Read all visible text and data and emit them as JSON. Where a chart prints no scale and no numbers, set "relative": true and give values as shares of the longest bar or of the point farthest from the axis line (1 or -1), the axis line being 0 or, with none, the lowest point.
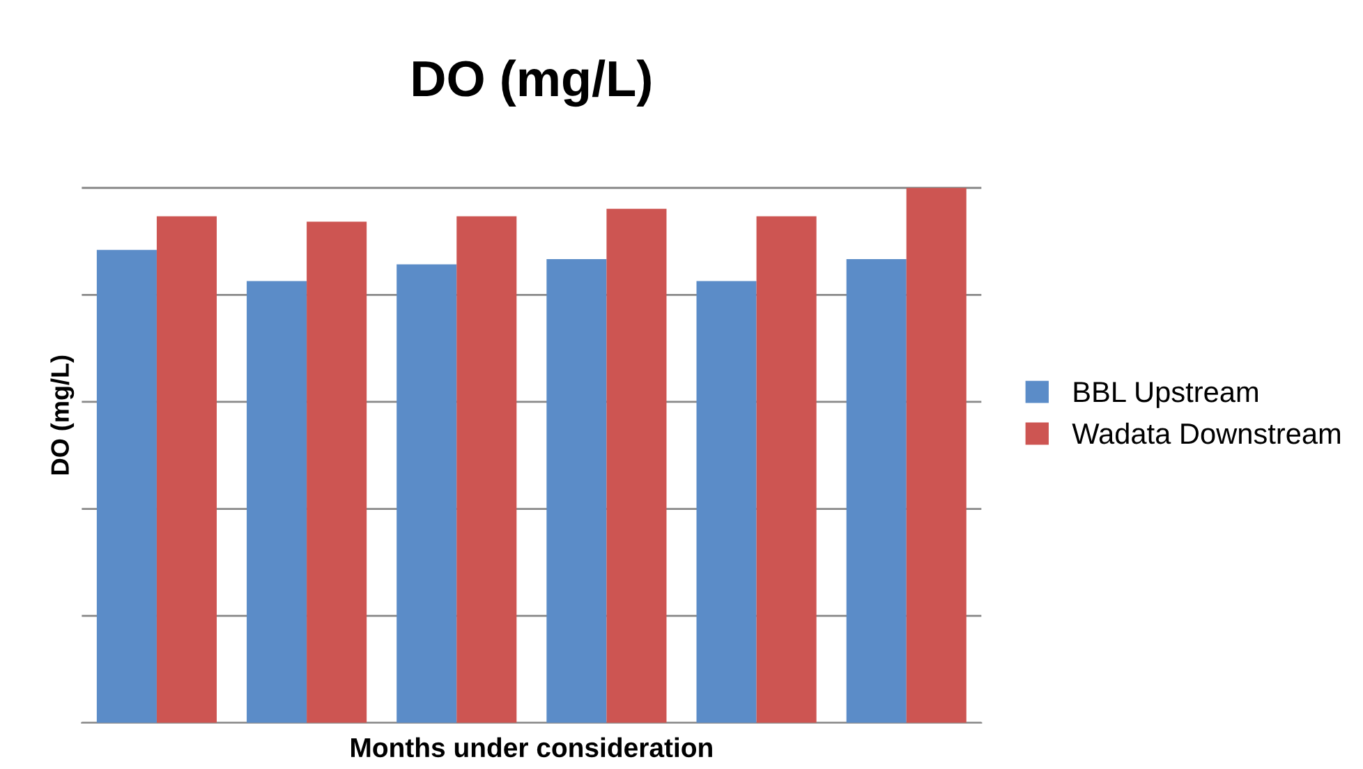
{
  "chart_data": {
    "type": "bar",
    "title": "DO (mg/L)",
    "xlabel": "Months under consideration",
    "ylabel": "DO (mg/L)",
    "relative": true,
    "categories": [
      null,
      null,
      null,
      null,
      null,
      null
    ],
    "series": [
      {
        "name": "BBL Upstream",
        "color": "#5b8cc8",
        "values": [
          0.884,
          0.826,
          0.857,
          0.867,
          0.826,
          0.867
        ]
      },
      {
        "name": "Wadata Downstream",
        "color": "#cd5552",
        "values": [
          0.947,
          0.937,
          0.947,
          0.961,
          0.947,
          1
        ]
      }
    ],
    "grid": "y",
    "legend": "right"
  }
}
